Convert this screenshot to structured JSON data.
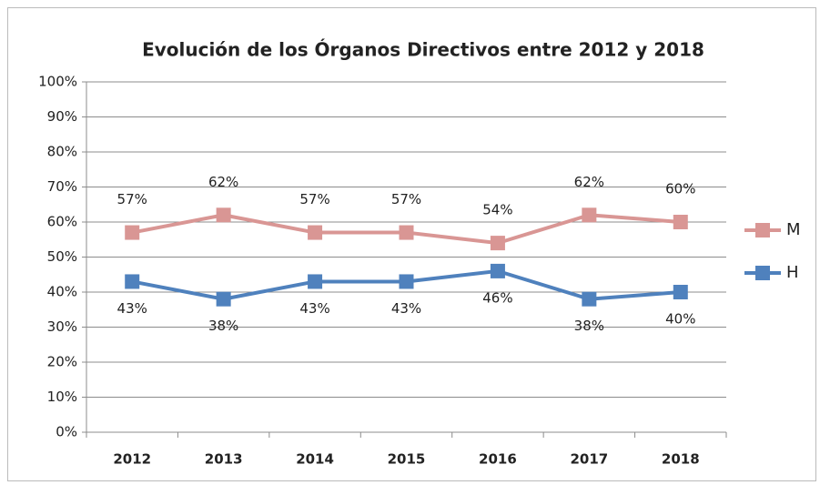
{
  "chart_data": {
    "type": "line",
    "title": "Evolución de los Órganos Directivos entre 2012 y 2018",
    "categories": [
      "2012",
      "2013",
      "2014",
      "2015",
      "2016",
      "2017",
      "2018"
    ],
    "series": [
      {
        "name": "M",
        "color": "#d99694",
        "values": [
          57,
          62,
          57,
          57,
          54,
          62,
          60
        ],
        "value_labels": [
          "57%",
          "62%",
          "57%",
          "57%",
          "54%",
          "62%",
          "60%"
        ]
      },
      {
        "name": "H",
        "color": "#4f81bd",
        "values": [
          43,
          38,
          43,
          43,
          46,
          38,
          40
        ],
        "value_labels": [
          "43%",
          "38%",
          "43%",
          "43%",
          "46%",
          "38%",
          "40%"
        ]
      }
    ],
    "ylim": [
      0,
      100
    ],
    "yticks": [
      {
        "value": 0,
        "label": "0%"
      },
      {
        "value": 10,
        "label": "10%"
      },
      {
        "value": 20,
        "label": "20%"
      },
      {
        "value": 30,
        "label": "30%"
      },
      {
        "value": 40,
        "label": "40%"
      },
      {
        "value": 50,
        "label": "50%"
      },
      {
        "value": 60,
        "label": "60%"
      },
      {
        "value": 70,
        "label": "70%"
      },
      {
        "value": 80,
        "label": "80%"
      },
      {
        "value": 90,
        "label": "90%"
      },
      {
        "value": 100,
        "label": "100%"
      }
    ],
    "grid": true,
    "legend": "right"
  }
}
